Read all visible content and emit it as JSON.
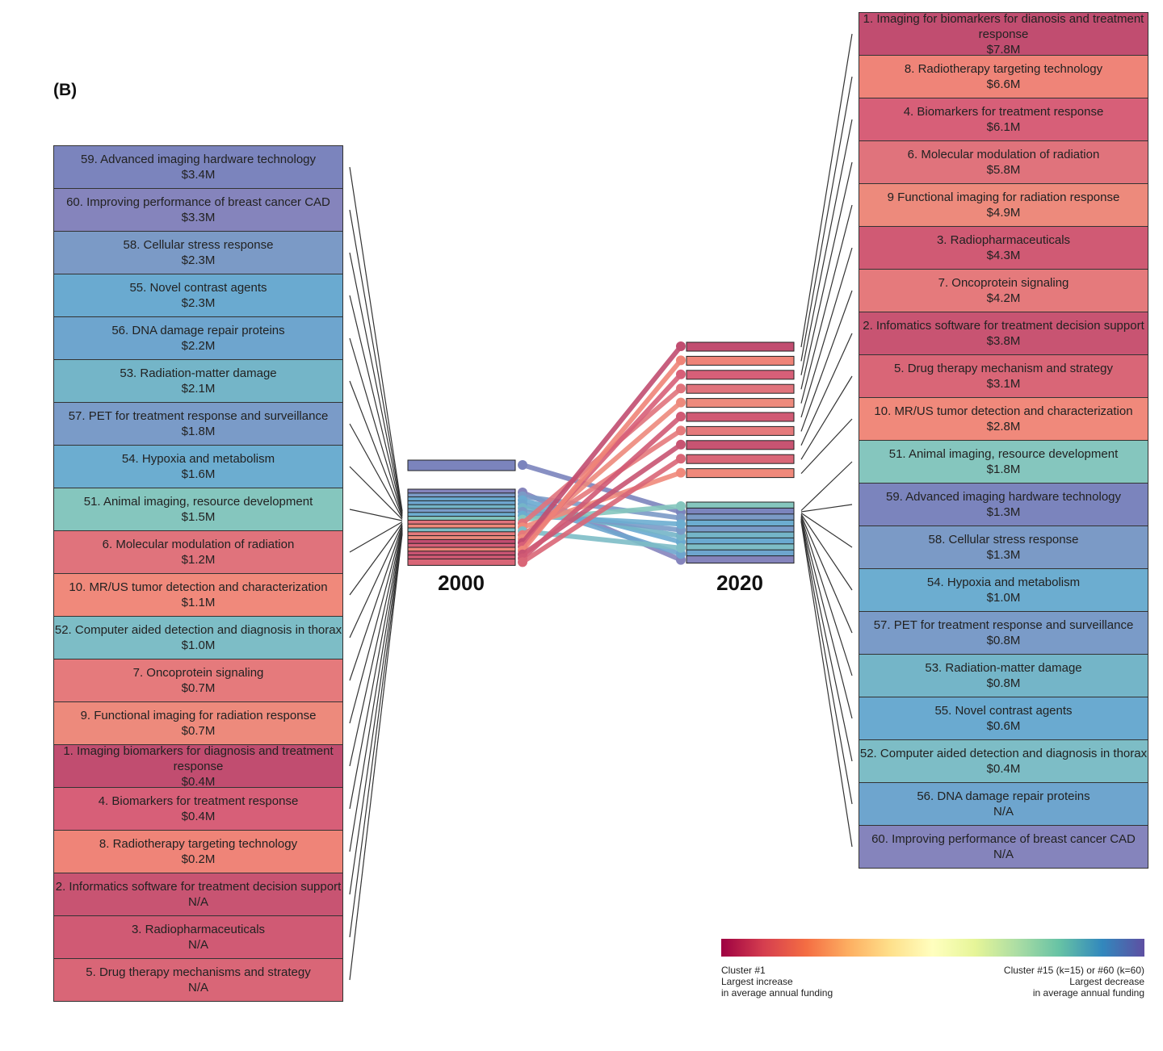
{
  "panel_label": "(B)",
  "chart_data": {
    "type": "bump",
    "years": [
      "2000",
      "2020"
    ],
    "left_items": [
      {
        "label": "59. Advanced imaging hardware technology",
        "value": "$3.4M",
        "color": "#7b84bd"
      },
      {
        "label": "60. Improving performance of breast cancer CAD",
        "value": "$3.3M",
        "color": "#8584bc"
      },
      {
        "label": "58. Cellular stress response",
        "value": "$2.3M",
        "color": "#7b9ac6"
      },
      {
        "label": "55. Novel contrast agents",
        "value": "$2.3M",
        "color": "#6aaad0"
      },
      {
        "label": "56. DNA damage repair proteins",
        "value": "$2.2M",
        "color": "#6ea5ce"
      },
      {
        "label": "53. Radiation-matter damage",
        "value": "$2.1M",
        "color": "#74b5c8"
      },
      {
        "label": "57. PET for treatment response and surveillance",
        "value": "$1.8M",
        "color": "#7a9bc8"
      },
      {
        "label": "54. Hypoxia and metabolism",
        "value": "$1.6M",
        "color": "#6cadd0"
      },
      {
        "label": "51. Animal imaging, resource development",
        "value": "$1.5M",
        "color": "#85c6be"
      },
      {
        "label": "6. Molecular modulation of radiation",
        "value": "$1.2M",
        "color": "#e0737c"
      },
      {
        "label": "10. MR/US tumor detection and characterization",
        "value": "$1.1M",
        "color": "#f0897b"
      },
      {
        "label": "52. Computer aided detection and diagnosis in thorax",
        "value": "$1.0M",
        "color": "#7dbdc6"
      },
      {
        "label": "7. Oncoprotein signaling",
        "value": "$0.7M",
        "color": "#e57a7c"
      },
      {
        "label": "9. Functional imaging for radiation response",
        "value": "$0.7M",
        "color": "#ed8a7c"
      },
      {
        "label": "1. Imaging biomarkers for diagnosis and treatment response",
        "value": "$0.4M",
        "color": "#c14d70"
      },
      {
        "label": "4. Biomarkers for treatment response",
        "value": "$0.4M",
        "color": "#d75f78"
      },
      {
        "label": "8. Radiotherapy targeting technology",
        "value": "$0.2M",
        "color": "#ef8478"
      },
      {
        "label": "2. Informatics software for treatment decision support",
        "value": "N/A",
        "color": "#c85472"
      },
      {
        "label": "3. Radiopharmaceuticals",
        "value": "N/A",
        "color": "#d05a74"
      },
      {
        "label": "5. Drug therapy mechanisms and strategy",
        "value": "N/A",
        "color": "#d96677"
      }
    ],
    "right_items": [
      {
        "label": "1. Imaging for biomarkers for dianosis and treatment response",
        "value": "$7.8M",
        "color": "#c14d70"
      },
      {
        "label": "8. Radiotherapy targeting technology",
        "value": "$6.6M",
        "color": "#ef8478"
      },
      {
        "label": "4. Biomarkers for treatment response",
        "value": "$6.1M",
        "color": "#d75f78"
      },
      {
        "label": "6. Molecular modulation of radiation",
        "value": "$5.8M",
        "color": "#e0737c"
      },
      {
        "label": "9 Functional imaging for radiation response",
        "value": "$4.9M",
        "color": "#ed8a7c"
      },
      {
        "label": "3. Radiopharmaceuticals",
        "value": "$4.3M",
        "color": "#d05a74"
      },
      {
        "label": "7. Oncoprotein signaling",
        "value": "$4.2M",
        "color": "#e57a7c"
      },
      {
        "label": "2. Infomatics software for treatment decision support",
        "value": "$3.8M",
        "color": "#c85472"
      },
      {
        "label": "5. Drug therapy mechanism and strategy",
        "value": "$3.1M",
        "color": "#d96677"
      },
      {
        "label": "10. MR/US tumor detection and characterization",
        "value": "$2.8M",
        "color": "#f0897b"
      },
      {
        "label": "51. Animal imaging, resource development",
        "value": "$1.8M",
        "color": "#85c6be"
      },
      {
        "label": "59. Advanced imaging hardware technology",
        "value": "$1.3M",
        "color": "#7b84bd"
      },
      {
        "label": "58. Cellular stress response",
        "value": "$1.3M",
        "color": "#7b9ac6"
      },
      {
        "label": "54. Hypoxia and metabolism",
        "value": "$1.0M",
        "color": "#6cadd0"
      },
      {
        "label": "57. PET for treatment response and surveillance",
        "value": "$0.8M",
        "color": "#7a9bc8"
      },
      {
        "label": "53. Radiation-matter damage",
        "value": "$0.8M",
        "color": "#74b5c8"
      },
      {
        "label": "55. Novel contrast agents",
        "value": "$0.6M",
        "color": "#6aaad0"
      },
      {
        "label": "52. Computer aided detection and diagnosis in thorax",
        "value": "$0.4M",
        "color": "#7dbdc6"
      },
      {
        "label": "56. DNA damage repair proteins",
        "value": "N/A",
        "color": "#6ea5ce"
      },
      {
        "label": "60. Improving performance of breast cancer CAD",
        "value": "N/A",
        "color": "#8584bc"
      }
    ],
    "legend": {
      "left_text": [
        "Cluster #1",
        "Largest increase",
        "in average annual funding"
      ],
      "right_text": [
        "Cluster #15 (k=15) or #60 (k=60)",
        "Largest decrease",
        "in average annual funding"
      ],
      "gradient_start": "#9e0142",
      "gradient_end": "#5e4fa2"
    }
  }
}
